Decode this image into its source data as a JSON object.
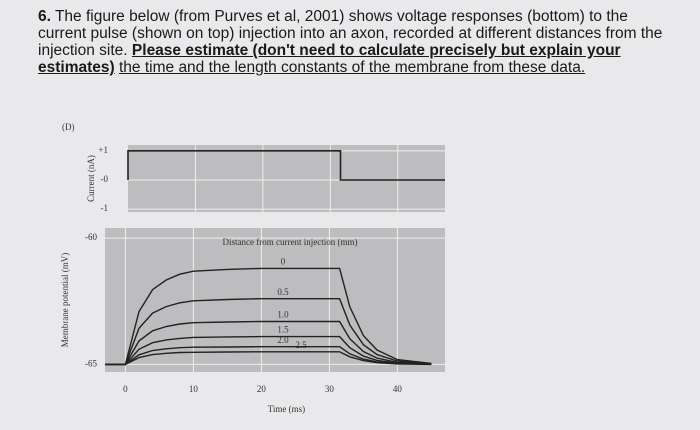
{
  "question": {
    "number": "6.",
    "text": "The figure below (from Purves et al, 2001) shows voltage responses (bottom) to the current pulse (shown on top) injection into an axon, recorded at different distances from the injection site.",
    "instruction_bold": "Please estimate (don't need to calculate precisely but explain your estimates)",
    "instruction_rest": "the time and the length constants of the membrane from these data."
  },
  "chart_data": [
    {
      "type": "line",
      "panel_label": "(D)",
      "y_label": "Current (nA)",
      "x": [
        0,
        0,
        31.5,
        31.5,
        47
      ],
      "values": [
        0,
        1,
        1,
        0,
        0
      ],
      "color": "#222222",
      "xlim": [
        0,
        47
      ],
      "ylim": [
        -1.1,
        1.2
      ],
      "yticks": [
        {
          "value": 1,
          "label": "+1"
        },
        {
          "value": 0,
          "label": "-0"
        },
        -1
      ],
      "grid": true
    },
    {
      "type": "line",
      "y_label": "Membrane potential (mV)",
      "x_label": "Time (ms)",
      "legend_title": "Distance from current injection (mm)",
      "x": [
        -3,
        0,
        2,
        4,
        6,
        8,
        10,
        15,
        20,
        25,
        31.5,
        33,
        35,
        37,
        40,
        45
      ],
      "series": [
        {
          "name": "0",
          "color": "#222222",
          "values": [
            -65,
            -65,
            -62.91,
            -62.04,
            -61.66,
            -61.43,
            -61.31,
            -61.24,
            -61.2,
            -61.2,
            -61.2,
            -62.72,
            -63.86,
            -64.43,
            -64.81,
            -64.96
          ]
        },
        {
          "name": "0.5",
          "color": "#222222",
          "values": [
            -65,
            -65,
            -63.57,
            -62.97,
            -62.71,
            -62.56,
            -62.48,
            -62.43,
            -62.4,
            -62.4,
            -62.4,
            -63.44,
            -64.22,
            -64.61,
            -64.87,
            -64.97
          ]
        },
        {
          "name": "1.0",
          "color": "#222222",
          "values": [
            -65,
            -65,
            -64.07,
            -63.67,
            -63.5,
            -63.4,
            -63.35,
            -63.32,
            -63.3,
            -63.3,
            -63.3,
            -63.98,
            -64.49,
            -64.75,
            -64.92,
            -64.98
          ]
        },
        {
          "name": "1.5",
          "color": "#222222",
          "values": [
            -65,
            -65,
            -64.4,
            -64.14,
            -64.03,
            -63.97,
            -63.93,
            -63.91,
            -63.9,
            -63.9,
            -63.9,
            -64.34,
            -64.67,
            -64.84,
            -64.95,
            -64.99
          ]
        },
        {
          "name": "2.0",
          "color": "#222222",
          "values": [
            -65,
            -65,
            -64.62,
            -64.45,
            -64.38,
            -64.34,
            -64.32,
            -64.31,
            -64.3,
            -64.3,
            -64.3,
            -64.58,
            -64.79,
            -64.9,
            -64.97,
            -64.99
          ]
        },
        {
          "name": "2.5",
          "color": "#222222",
          "values": [
            -65,
            -65,
            -64.73,
            -64.61,
            -64.56,
            -64.53,
            -64.52,
            -64.51,
            -64.5,
            -64.5,
            -64.5,
            -64.7,
            -64.85,
            -64.93,
            -64.98,
            -65
          ]
        }
      ],
      "xlim": [
        -3,
        47
      ],
      "ylim": [
        -65.3,
        -59.6
      ],
      "xticks": [
        0,
        10,
        20,
        30,
        40
      ],
      "yticks": [
        -60,
        -65
      ],
      "grid": true
    }
  ]
}
